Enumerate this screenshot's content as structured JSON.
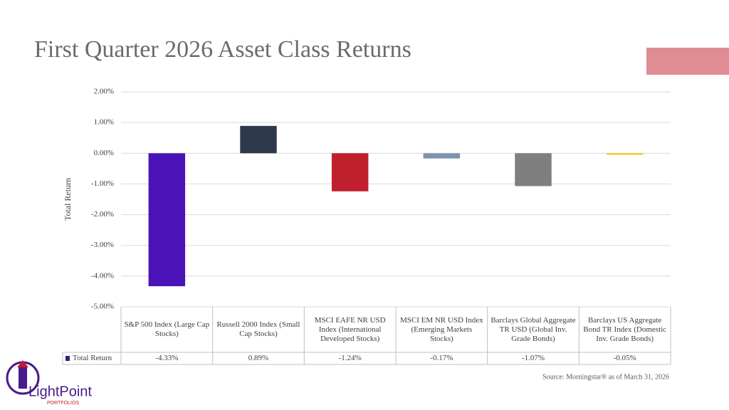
{
  "chart_data": {
    "type": "bar",
    "title": "First Quarter 2026 Asset Class Returns",
    "y_label": "Total Return",
    "categories": [
      "S&P 500 Index (Large Cap Stocks)",
      "Russell 2000 Index (Small Cap Stocks)",
      "MSCI EAFE NR USD Index (International Developed Stocks)",
      "MSCI EM NR USD Index (Emerging Markets Stocks)",
      "Barclays Global Aggregate TR USD (Global Inv. Grade Bonds)",
      "Barclays US Aggregate Bond TR Index (Domestic Inv. Grade Bonds)"
    ],
    "series": [
      {
        "name": "Total Return",
        "color": "#3a1a7a",
        "colors": [
          "#4b12b8",
          "#2e3a4c",
          "#c01f2d",
          "#7d93ad",
          "#7f7f7f",
          "#f2c811"
        ],
        "values": [
          -4.33,
          0.89,
          -1.24,
          -0.17,
          -1.07,
          -0.05
        ],
        "value_labels": [
          "-4.33%",
          "0.89%",
          "-1.24%",
          "-0.17%",
          "-1.07%",
          "-0.05%"
        ]
      }
    ],
    "ylim": [
      -5,
      2
    ],
    "yticks": [
      {
        "value": 2,
        "label": "2.00%"
      },
      {
        "value": 1,
        "label": "1.00%"
      },
      {
        "value": 0,
        "label": "0.00%"
      },
      {
        "value": -1,
        "label": "-1.00%"
      },
      {
        "value": -2,
        "label": "-2.00%"
      },
      {
        "value": -3,
        "label": "-3.00%"
      },
      {
        "value": -4,
        "label": "-4.00%"
      },
      {
        "value": -5,
        "label": "-5.00%"
      }
    ],
    "grid": true,
    "source": "Source: Morningstar® as of March 31, 2026"
  },
  "logo": {
    "name": "LightPoint",
    "tagline": "PORTFOLIOS"
  }
}
